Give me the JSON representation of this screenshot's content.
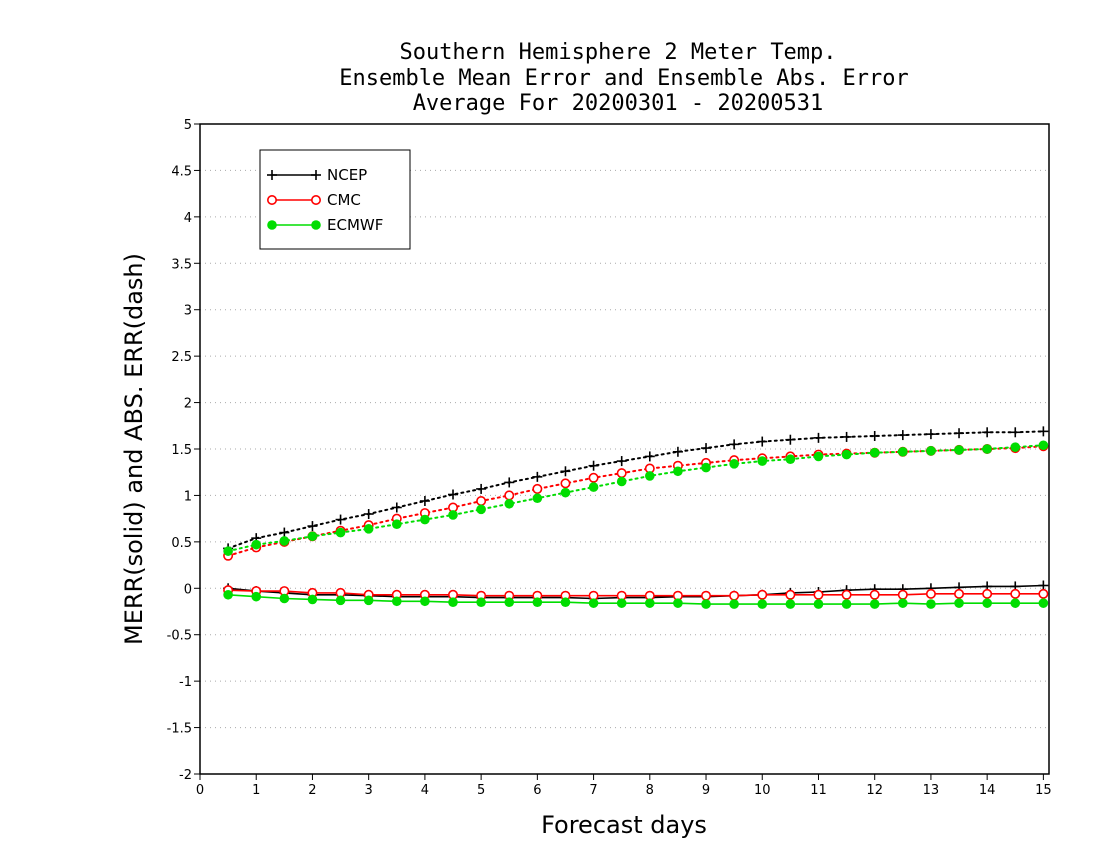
{
  "chart_data": {
    "type": "line",
    "title": [
      "Southern Hemisphere 2 Meter Temp.",
      "Ensemble Mean Error and Ensemble Abs. Error",
      "Average For 20200301 - 20200531"
    ],
    "xlabel": "Forecast days",
    "ylabel": "MERR(solid) and ABS. ERR(dash)",
    "xlim": [
      0,
      15.1
    ],
    "ylim": [
      -2,
      5
    ],
    "xticks": [
      "0",
      "1",
      "2",
      "3",
      "4",
      "5",
      "6",
      "7",
      "8",
      "9",
      "10",
      "11",
      "12",
      "13",
      "14",
      "15"
    ],
    "yticks": [
      "-2",
      "-1.5",
      "-1",
      "-0.5",
      "0",
      "0.5",
      "1",
      "1.5",
      "2",
      "2.5",
      "3",
      "3.5",
      "4",
      "4.5",
      "5"
    ],
    "grid": true,
    "legend_position": "top-left",
    "x": [
      0.5,
      1,
      1.5,
      2,
      2.5,
      3,
      3.5,
      4,
      4.5,
      5,
      5.5,
      6,
      6.5,
      7,
      7.5,
      8,
      8.5,
      9,
      9.5,
      10,
      10.5,
      11,
      11.5,
      12,
      12.5,
      13,
      13.5,
      14,
      14.5,
      15
    ],
    "series": [
      {
        "name": "NCEP",
        "color": "#000000",
        "marker": "plus",
        "abs_err": [
          0.43,
          0.54,
          0.6,
          0.67,
          0.74,
          0.8,
          0.87,
          0.94,
          1.01,
          1.07,
          1.14,
          1.2,
          1.26,
          1.32,
          1.37,
          1.42,
          1.47,
          1.51,
          1.55,
          1.58,
          1.6,
          1.62,
          1.63,
          1.64,
          1.65,
          1.66,
          1.67,
          1.68,
          1.68,
          1.69
        ],
        "mean_err": [
          0.0,
          -0.03,
          -0.05,
          -0.07,
          -0.07,
          -0.08,
          -0.09,
          -0.09,
          -0.09,
          -0.1,
          -0.1,
          -0.1,
          -0.1,
          -0.11,
          -0.1,
          -0.1,
          -0.09,
          -0.09,
          -0.08,
          -0.07,
          -0.05,
          -0.04,
          -0.02,
          -0.01,
          -0.01,
          0.0,
          0.01,
          0.02,
          0.02,
          0.03
        ]
      },
      {
        "name": "CMC",
        "color": "#ff0000",
        "marker": "open-circle",
        "abs_err": [
          0.35,
          0.44,
          0.5,
          0.56,
          0.62,
          0.68,
          0.75,
          0.81,
          0.87,
          0.94,
          1.0,
          1.07,
          1.13,
          1.19,
          1.24,
          1.29,
          1.32,
          1.35,
          1.38,
          1.4,
          1.42,
          1.44,
          1.45,
          1.46,
          1.47,
          1.48,
          1.49,
          1.5,
          1.51,
          1.53
        ],
        "mean_err": [
          -0.02,
          -0.03,
          -0.03,
          -0.05,
          -0.05,
          -0.07,
          -0.07,
          -0.07,
          -0.07,
          -0.08,
          -0.08,
          -0.08,
          -0.08,
          -0.08,
          -0.08,
          -0.08,
          -0.08,
          -0.08,
          -0.08,
          -0.07,
          -0.07,
          -0.07,
          -0.07,
          -0.07,
          -0.07,
          -0.06,
          -0.06,
          -0.06,
          -0.06,
          -0.06
        ]
      },
      {
        "name": "ECMWF",
        "color": "#00dd00",
        "marker": "filled-circle",
        "abs_err": [
          0.4,
          0.47,
          0.51,
          0.56,
          0.6,
          0.64,
          0.69,
          0.74,
          0.79,
          0.85,
          0.91,
          0.97,
          1.03,
          1.09,
          1.15,
          1.21,
          1.26,
          1.3,
          1.34,
          1.37,
          1.39,
          1.42,
          1.44,
          1.46,
          1.47,
          1.48,
          1.49,
          1.5,
          1.52,
          1.54
        ],
        "mean_err": [
          -0.07,
          -0.09,
          -0.11,
          -0.12,
          -0.13,
          -0.13,
          -0.14,
          -0.14,
          -0.15,
          -0.15,
          -0.15,
          -0.15,
          -0.15,
          -0.16,
          -0.16,
          -0.16,
          -0.16,
          -0.17,
          -0.17,
          -0.17,
          -0.17,
          -0.17,
          -0.17,
          -0.17,
          -0.16,
          -0.17,
          -0.16,
          -0.16,
          -0.16,
          -0.16
        ]
      }
    ]
  }
}
